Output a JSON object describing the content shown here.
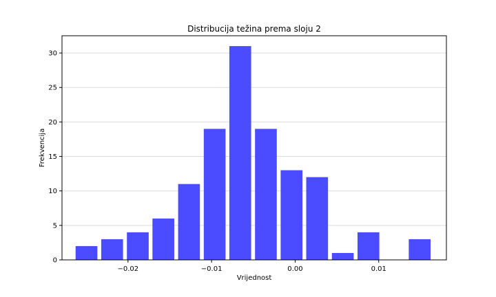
{
  "chart_data": {
    "type": "bar",
    "title": "Distribucija težina prema sloju 2",
    "xlabel": "Vrijednost",
    "ylabel": "Frekvencija",
    "bar_color": "#4b4bff",
    "grid": "horizontal",
    "xlim": [
      -0.0279,
      0.0181
    ],
    "ylim": [
      0,
      32.5
    ],
    "bin_width": 0.003067,
    "bars": [
      {
        "x": -0.02497,
        "value": 2
      },
      {
        "x": -0.0219,
        "value": 3
      },
      {
        "x": -0.01883,
        "value": 4
      },
      {
        "x": -0.01577,
        "value": 6
      },
      {
        "x": -0.0127,
        "value": 11
      },
      {
        "x": -0.00963,
        "value": 19
      },
      {
        "x": -0.00657,
        "value": 31
      },
      {
        "x": -0.0035,
        "value": 19
      },
      {
        "x": -0.00043,
        "value": 13
      },
      {
        "x": 0.00263,
        "value": 12
      },
      {
        "x": 0.0057,
        "value": 1
      },
      {
        "x": 0.00877,
        "value": 4
      },
      {
        "x": 0.01183,
        "value": 0
      },
      {
        "x": 0.0149,
        "value": 3
      }
    ],
    "xticks": [
      {
        "value": -0.02,
        "label": "−0.02"
      },
      {
        "value": -0.01,
        "label": "−0.01"
      },
      {
        "value": 0.0,
        "label": "0.00"
      },
      {
        "value": 0.01,
        "label": "0.01"
      }
    ],
    "yticks": [
      {
        "value": 0,
        "label": "0"
      },
      {
        "value": 5,
        "label": "5"
      },
      {
        "value": 10,
        "label": "10"
      },
      {
        "value": 15,
        "label": "15"
      },
      {
        "value": 20,
        "label": "20"
      },
      {
        "value": 25,
        "label": "25"
      },
      {
        "value": 30,
        "label": "30"
      }
    ]
  }
}
